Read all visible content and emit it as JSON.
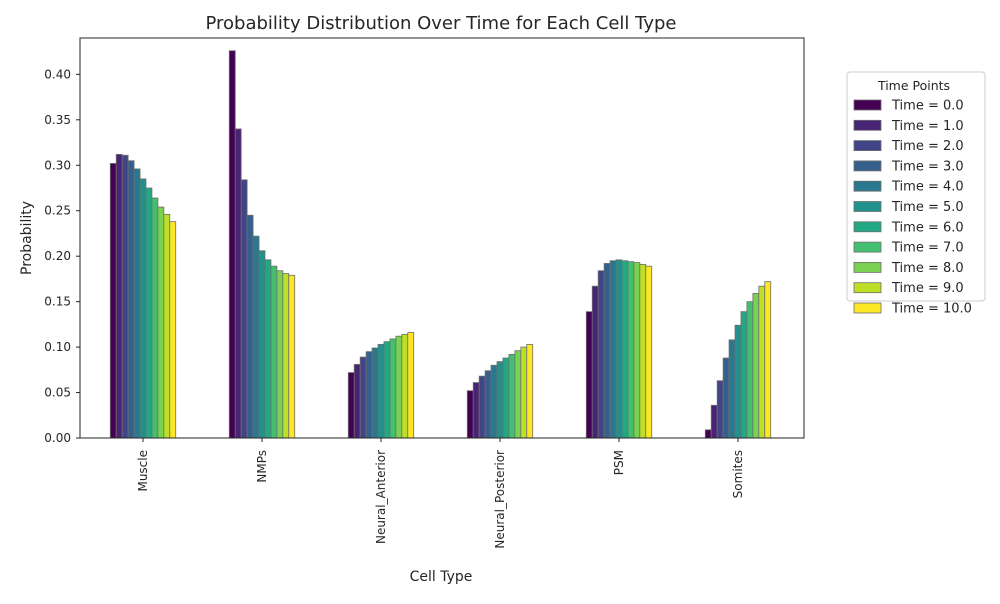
{
  "chart_data": {
    "type": "bar",
    "title": "Probability Distribution Over Time for Each Cell Type",
    "xlabel": "Cell Type",
    "ylabel": "Probability",
    "ylim": [
      0,
      0.44
    ],
    "yticks": [
      0.0,
      0.05,
      0.1,
      0.15,
      0.2,
      0.25,
      0.3,
      0.35,
      0.4
    ],
    "ytick_labels": [
      "0.00",
      "0.05",
      "0.10",
      "0.15",
      "0.20",
      "0.25",
      "0.30",
      "0.35",
      "0.40"
    ],
    "grid": false,
    "legend_title": "Time Points",
    "legend_position": "outside-top-right",
    "categories": [
      "Muscle",
      "NMPs",
      "Neural_Anterior",
      "Neural_Posterior",
      "PSM",
      "Somites"
    ],
    "series": [
      {
        "name": "Time = 0.0",
        "color": "#440154",
        "values": [
          0.302,
          0.426,
          0.072,
          0.052,
          0.139,
          0.009
        ]
      },
      {
        "name": "Time = 1.0",
        "color": "#482475",
        "values": [
          0.312,
          0.34,
          0.081,
          0.061,
          0.167,
          0.036
        ]
      },
      {
        "name": "Time = 2.0",
        "color": "#414487",
        "values": [
          0.311,
          0.284,
          0.089,
          0.068,
          0.184,
          0.063
        ]
      },
      {
        "name": "Time = 3.0",
        "color": "#355f8d",
        "values": [
          0.305,
          0.245,
          0.095,
          0.074,
          0.192,
          0.088
        ]
      },
      {
        "name": "Time = 4.0",
        "color": "#2a788e",
        "values": [
          0.296,
          0.222,
          0.099,
          0.08,
          0.195,
          0.108
        ]
      },
      {
        "name": "Time = 5.0",
        "color": "#21918c",
        "values": [
          0.285,
          0.206,
          0.103,
          0.084,
          0.196,
          0.124
        ]
      },
      {
        "name": "Time = 6.0",
        "color": "#22a884",
        "values": [
          0.275,
          0.196,
          0.106,
          0.088,
          0.195,
          0.139
        ]
      },
      {
        "name": "Time = 7.0",
        "color": "#44bf70",
        "values": [
          0.264,
          0.189,
          0.109,
          0.092,
          0.194,
          0.15
        ]
      },
      {
        "name": "Time = 8.0",
        "color": "#7ad151",
        "values": [
          0.254,
          0.184,
          0.112,
          0.096,
          0.193,
          0.159
        ]
      },
      {
        "name": "Time = 9.0",
        "color": "#bddf26",
        "values": [
          0.246,
          0.181,
          0.114,
          0.1,
          0.191,
          0.167
        ]
      },
      {
        "name": "Time = 10.0",
        "color": "#fde725",
        "values": [
          0.238,
          0.179,
          0.116,
          0.103,
          0.189,
          0.172
        ]
      }
    ]
  }
}
